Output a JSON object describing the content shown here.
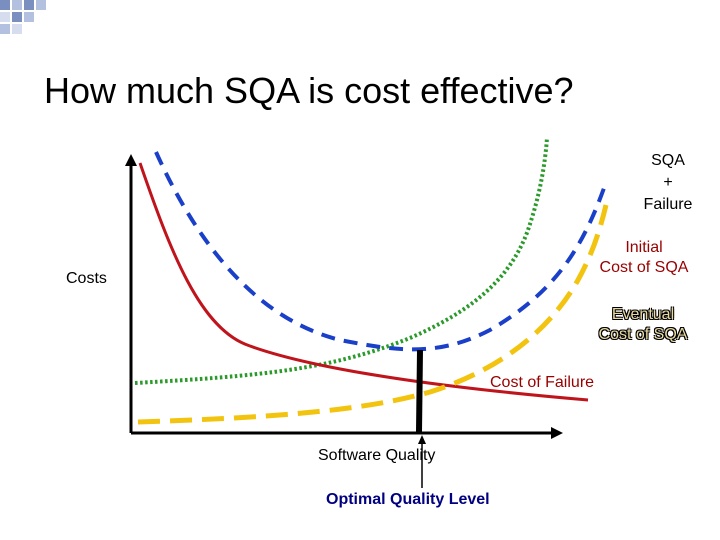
{
  "title": "How much SQA is cost effective?",
  "labels": {
    "sqa_failure": [
      "SQA",
      "+",
      "Failure"
    ],
    "initial_cost": [
      "Initial",
      "Cost of SQA"
    ],
    "eventual_cost": [
      "Eventual",
      "Cost of SQA"
    ],
    "cost_of_failure": "Cost of Failure",
    "y_axis": "Costs",
    "x_axis": "Software Quality",
    "optimal": "Optimal Quality Level"
  },
  "colors": {
    "cost_of_failure": "#c0141c",
    "initial_cost_of_sqa": "#1a3fc8",
    "eventual_cost_of_sqa": "#f2c40f",
    "sqa_plus_failure": "#2a9a2a",
    "axes": "#000000",
    "deco": "#7a8ec0"
  },
  "chart_data": {
    "type": "line",
    "xlabel": "Software Quality",
    "ylabel": "Costs",
    "series": [
      {
        "name": "Cost of Failure",
        "style": "solid",
        "color": "#c0141c"
      },
      {
        "name": "Initial Cost of SQA",
        "style": "dashed",
        "color": "#1a3fc8"
      },
      {
        "name": "Eventual Cost of SQA",
        "style": "dashed",
        "color": "#f2c40f"
      },
      {
        "name": "SQA + Failure",
        "style": "dotted",
        "color": "#2a9a2a"
      }
    ],
    "annotation": "Optimal Quality Level"
  }
}
